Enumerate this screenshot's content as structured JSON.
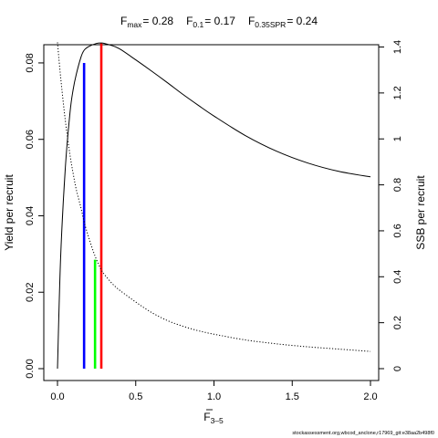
{
  "chart_data": {
    "type": "line",
    "title": {
      "parts": [
        {
          "label": "F",
          "sub": "max",
          "eq": "= 0.28"
        },
        {
          "label": "F",
          "sub": "0.1",
          "eq": "= 0.17"
        },
        {
          "label": "F",
          "sub": "0.35SPR",
          "eq": "= 0.24"
        }
      ]
    },
    "xlabel": {
      "main": "F",
      "sub": "3–5"
    },
    "ylabel_left": "Yield per recruit",
    "ylabel_right": "SSB per recruit",
    "xlim": [
      0,
      2
    ],
    "ylim_left": [
      0,
      0.085
    ],
    "ylim_right": [
      0,
      1.41
    ],
    "x_ticks": [
      0,
      0.5,
      1,
      1.5,
      2
    ],
    "x_tick_labels": [
      "0.0",
      "0.5",
      "1.0",
      "1.5",
      "2.0"
    ],
    "y_left_ticks": [
      0,
      0.02,
      0.04,
      0.06,
      0.08
    ],
    "y_left_tick_labels": [
      "0.00",
      "0.02",
      "0.04",
      "0.06",
      "0.08"
    ],
    "y_right_ticks": [
      0,
      0.2,
      0.4,
      0.6,
      0.8,
      1,
      1.2,
      1.4
    ],
    "y_right_tick_labels": [
      "0",
      "0.2",
      "0.4",
      "0.6",
      "0.8",
      "1",
      "1.2",
      "1.4"
    ],
    "grid": false,
    "series": [
      {
        "axis": "left",
        "style": "solid",
        "color": "#000000",
        "x": [
          0,
          0.02,
          0.05,
          0.08,
          0.1,
          0.12,
          0.15,
          0.17,
          0.2,
          0.25,
          0.28,
          0.3,
          0.35,
          0.4,
          0.5,
          0.6,
          0.7,
          0.8,
          0.9,
          1.0,
          1.2,
          1.4,
          1.6,
          1.8,
          2.0
        ],
        "y": [
          0.0,
          0.029,
          0.0525,
          0.067,
          0.073,
          0.077,
          0.0815,
          0.0833,
          0.0843,
          0.0851,
          0.0852,
          0.0851,
          0.0845,
          0.0836,
          0.0808,
          0.0779,
          0.0749,
          0.0718,
          0.0689,
          0.0661,
          0.061,
          0.0569,
          0.0538,
          0.0516,
          0.0502
        ]
      },
      {
        "axis": "right",
        "style": "dotted",
        "color": "#000000",
        "x": [
          0,
          0.02,
          0.05,
          0.08,
          0.1,
          0.12,
          0.15,
          0.17,
          0.2,
          0.24,
          0.28,
          0.3,
          0.35,
          0.4,
          0.5,
          0.6,
          0.7,
          0.8,
          0.9,
          1.0,
          1.2,
          1.4,
          1.6,
          1.8,
          2.0
        ],
        "y": [
          1.42,
          1.27,
          1.08,
          0.93,
          0.85,
          0.78,
          0.7,
          0.64,
          0.57,
          0.49,
          0.43,
          0.41,
          0.37,
          0.34,
          0.29,
          0.245,
          0.21,
          0.185,
          0.165,
          0.15,
          0.125,
          0.108,
          0.095,
          0.085,
          0.075
        ]
      }
    ],
    "reference_lines": [
      {
        "x": 0.17,
        "y": 0.08,
        "axis": "left",
        "color": "#0000ff"
      },
      {
        "x": 0.28,
        "y": 0.0852,
        "axis": "left",
        "color": "#ff0000"
      },
      {
        "x": 0.24,
        "y": 0.0285,
        "axis": "left",
        "color": "#00ff00"
      }
    ]
  },
  "footer_text": "stockassessment.org,wbcod_anclone,r17969_git:e38aa2b498f0"
}
